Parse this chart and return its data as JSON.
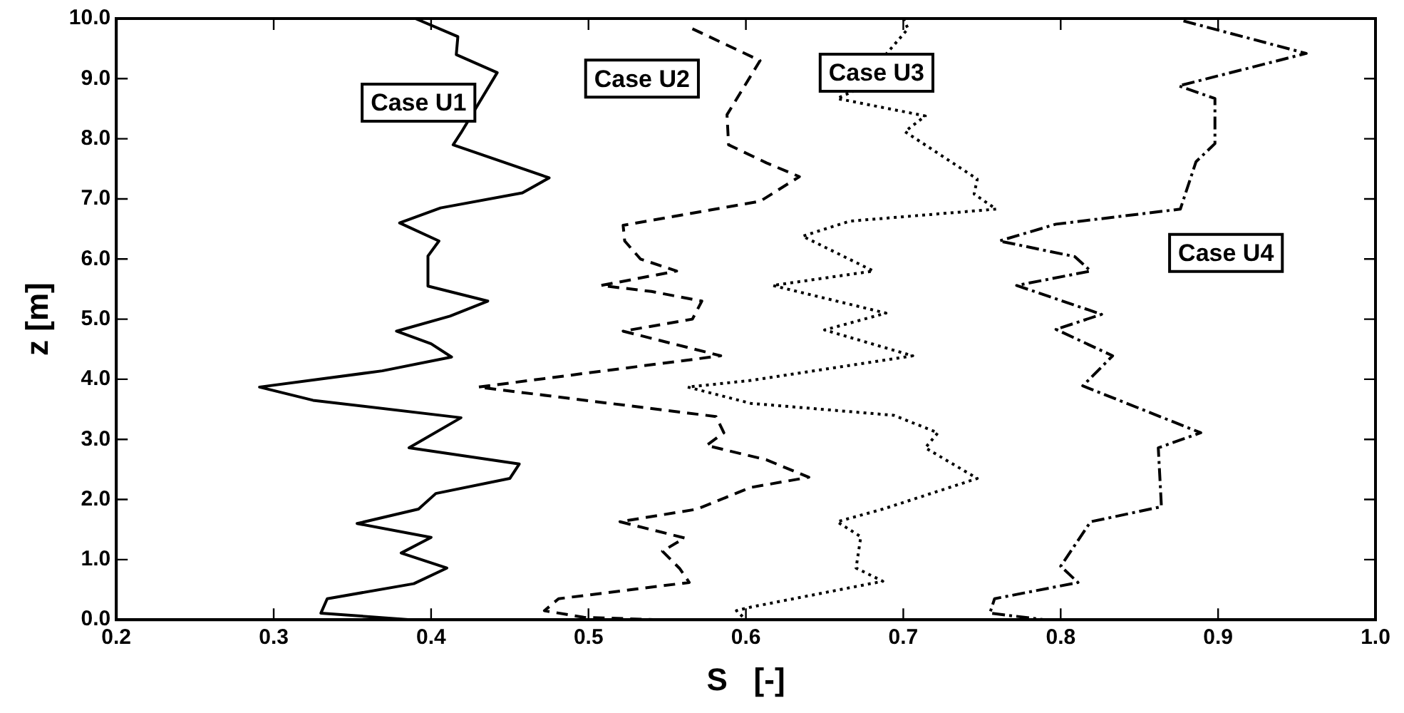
{
  "chart_data": {
    "type": "line",
    "xlabel": "S   [-]",
    "ylabel": "z [m]",
    "xlim": [
      0.2,
      1.0
    ],
    "xticks": [
      0.2,
      0.3,
      0.4,
      0.5,
      0.6,
      0.7,
      0.8,
      0.9,
      {
        "value": 1.0,
        "label": "1.0"
      }
    ],
    "ylim": [
      0,
      10
    ],
    "yticks": [
      {
        "value": 0,
        "label": "0.0"
      },
      {
        "value": 1,
        "label": "1.0"
      },
      {
        "value": 2,
        "label": "2.0"
      },
      {
        "value": 3,
        "label": "3.0"
      },
      {
        "value": 4,
        "label": "4.0"
      },
      {
        "value": 5,
        "label": "5.0"
      },
      {
        "value": 6,
        "label": "6.0"
      },
      {
        "value": 7,
        "label": "7.0"
      },
      {
        "value": 8,
        "label": "8.0"
      },
      {
        "value": 9,
        "label": "9.0"
      },
      {
        "value": 10,
        "label": "10.0"
      }
    ],
    "grid": false,
    "legend": false,
    "marker": "none",
    "series": [
      {
        "name": "Case U1",
        "color": "#000000",
        "line_style": "solid",
        "x": [
          0.39,
          0.417,
          0.416,
          0.442,
          0.419,
          0.414,
          0.475,
          0.458,
          0.406,
          0.38,
          0.405,
          0.398,
          0.398,
          0.436,
          0.412,
          0.378,
          0.4,
          0.413,
          0.369,
          0.291,
          0.325,
          0.419,
          0.386,
          0.456,
          0.45,
          0.403,
          0.392,
          0.353,
          0.4,
          0.381,
          0.41,
          0.389,
          0.334,
          0.33,
          0.387
        ],
        "values": [
          10.0,
          9.7,
          9.4,
          9.1,
          8.1,
          7.9,
          7.35,
          7.1,
          6.85,
          6.6,
          6.3,
          6.05,
          5.55,
          5.3,
          5.05,
          4.8,
          4.59,
          4.37,
          4.14,
          3.87,
          3.65,
          3.36,
          2.86,
          2.59,
          2.35,
          2.1,
          1.84,
          1.6,
          1.37,
          1.11,
          0.86,
          0.6,
          0.35,
          0.11,
          0.0
        ]
      },
      {
        "name": "Case U2",
        "color": "#000000",
        "line_style": "dashed",
        "x": [
          0.566,
          0.609,
          0.588,
          0.589,
          0.613,
          0.634,
          0.609,
          0.522,
          0.523,
          0.533,
          0.556,
          0.508,
          0.54,
          0.572,
          0.566,
          0.522,
          0.584,
          0.43,
          0.581,
          0.586,
          0.575,
          0.613,
          0.64,
          0.603,
          0.569,
          0.52,
          0.561,
          0.547,
          0.558,
          0.564,
          0.481,
          0.472,
          0.497,
          0.544
        ],
        "values": [
          9.83,
          9.3,
          8.4,
          7.9,
          7.6,
          7.37,
          6.96,
          6.56,
          6.3,
          6.0,
          5.8,
          5.56,
          5.46,
          5.3,
          5.0,
          4.8,
          4.39,
          3.87,
          3.38,
          3.11,
          2.9,
          2.66,
          2.37,
          2.2,
          1.84,
          1.63,
          1.36,
          1.14,
          0.85,
          0.62,
          0.35,
          0.15,
          0.04,
          0.0
        ]
      },
      {
        "name": "Case U3",
        "color": "#000000",
        "line_style": "dotted",
        "x": [
          0.7,
          0.703,
          0.669,
          0.658,
          0.714,
          0.701,
          0.747,
          0.745,
          0.759,
          0.666,
          0.636,
          0.681,
          0.617,
          0.689,
          0.65,
          0.706,
          0.603,
          0.563,
          0.603,
          0.694,
          0.722,
          0.714,
          0.747,
          0.687,
          0.658,
          0.673,
          0.67,
          0.687,
          0.603,
          0.594,
          0.6
        ],
        "values": [
          10.0,
          9.83,
          8.8,
          8.67,
          8.38,
          8.12,
          7.33,
          7.08,
          6.83,
          6.63,
          6.38,
          5.8,
          5.56,
          5.1,
          4.82,
          4.39,
          3.98,
          3.87,
          3.6,
          3.4,
          3.11,
          2.86,
          2.35,
          1.84,
          1.63,
          1.38,
          0.86,
          0.64,
          0.21,
          0.15,
          0.0
        ]
      },
      {
        "name": "Case U4",
        "color": "#000000",
        "line_style": "dashdot",
        "x": [
          0.878,
          0.956,
          0.875,
          0.898,
          0.898,
          0.886,
          0.876,
          0.797,
          0.761,
          0.809,
          0.819,
          0.772,
          0.826,
          0.797,
          0.833,
          0.814,
          0.889,
          0.862,
          0.864,
          0.819,
          0.8,
          0.811,
          0.758,
          0.755,
          0.79
        ],
        "values": [
          9.96,
          9.42,
          8.88,
          8.67,
          7.92,
          7.62,
          6.83,
          6.58,
          6.3,
          6.04,
          5.8,
          5.56,
          5.08,
          4.83,
          4.39,
          3.89,
          3.11,
          2.86,
          1.88,
          1.63,
          0.89,
          0.62,
          0.35,
          0.11,
          0.0
        ]
      }
    ]
  }
}
